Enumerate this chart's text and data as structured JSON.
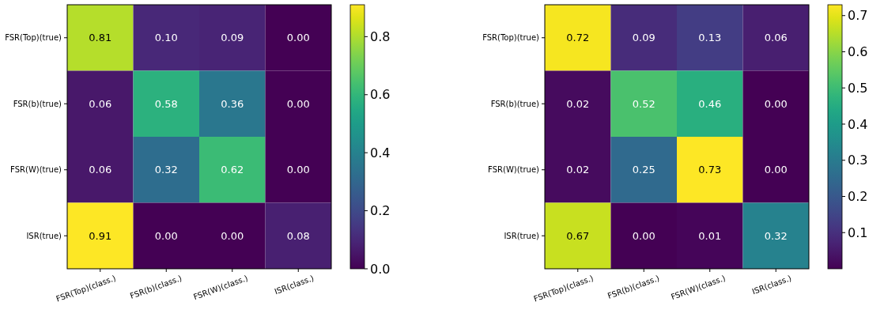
{
  "chart_data": [
    {
      "type": "heatmap",
      "categories": [
        "FSR(Top)(class.)",
        "FSR(b)(class.)",
        "FSR(W)(class.)",
        "ISR(class.)"
      ],
      "y_categories": [
        "FSR(Top)(true)",
        "FSR(b)(true)",
        "FSR(W)(true)",
        "ISR(true)"
      ],
      "cells": [
        [
          0.81,
          0.1,
          0.09,
          0.0
        ],
        [
          0.06,
          0.58,
          0.36,
          0.0
        ],
        [
          0.06,
          0.32,
          0.62,
          0.0
        ],
        [
          0.91,
          0.0,
          0.0,
          0.08
        ]
      ],
      "cell_labels": [
        [
          "0.81",
          "0.10",
          "0.09",
          "0.00"
        ],
        [
          "0.06",
          "0.58",
          "0.36",
          "0.00"
        ],
        [
          "0.06",
          "0.32",
          "0.62",
          "0.00"
        ],
        [
          "0.91",
          "0.00",
          "0.00",
          "0.08"
        ]
      ],
      "clim": [
        0,
        0.91
      ],
      "cticks": [
        {
          "value": 0,
          "label": "0.0"
        },
        {
          "value": 0.2,
          "label": "0.2"
        },
        {
          "value": 0.4,
          "label": "0.4"
        },
        {
          "value": 0.6,
          "label": "0.6"
        },
        {
          "value": 0.8,
          "label": "0.8"
        }
      ]
    },
    {
      "type": "heatmap",
      "categories": [
        "FSR(Top)(class.)",
        "FSR(b)(class.)",
        "FSR(W)(class.)",
        "ISR(class.)"
      ],
      "y_categories": [
        "FSR(Top)(true)",
        "FSR(b)(true)",
        "FSR(W)(true)",
        "ISR(true)"
      ],
      "cells": [
        [
          0.72,
          0.09,
          0.13,
          0.06
        ],
        [
          0.02,
          0.52,
          0.46,
          0.0
        ],
        [
          0.02,
          0.25,
          0.73,
          0.0
        ],
        [
          0.67,
          0.0,
          0.01,
          0.32
        ]
      ],
      "cell_labels": [
        [
          "0.72",
          "0.09",
          "0.13",
          "0.06"
        ],
        [
          "0.02",
          "0.52",
          "0.46",
          "0.00"
        ],
        [
          "0.02",
          "0.25",
          "0.73",
          "0.00"
        ],
        [
          "0.67",
          "0.00",
          "0.01",
          "0.32"
        ]
      ],
      "clim": [
        0,
        0.73
      ],
      "cticks": [
        0.1,
        0.2,
        0.3,
        0.4,
        0.5,
        0.6,
        0.7
      ]
    }
  ]
}
